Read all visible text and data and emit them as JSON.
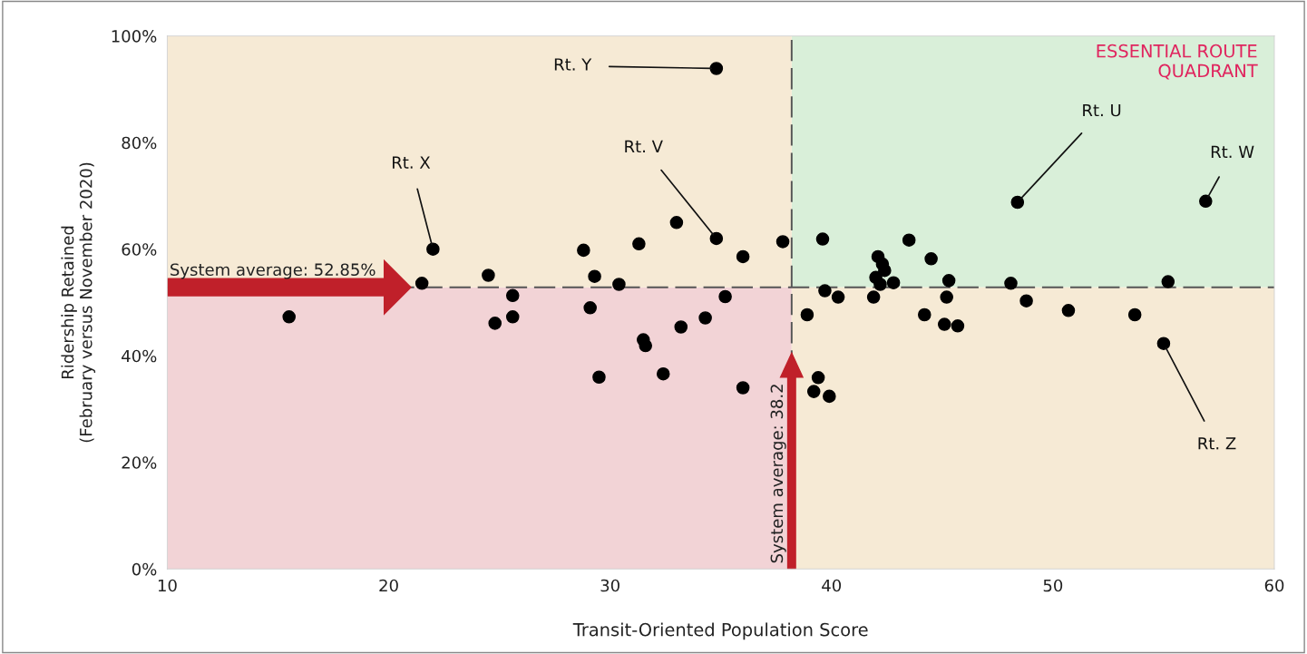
{
  "chart_data": {
    "type": "scatter",
    "xlabel": "Transit-Oriented Population Score",
    "ylabel": "Ridership Retained\n(February versus November 2020)",
    "xlim": [
      10,
      60
    ],
    "xticks": [
      10,
      20,
      30,
      40,
      50,
      60
    ],
    "ylim": [
      0,
      100
    ],
    "yticks": [
      {
        "value": 0,
        "label": "0%"
      },
      {
        "value": 20,
        "label": "20%"
      },
      {
        "value": 40,
        "label": "40%"
      },
      {
        "value": 60,
        "label": "60%"
      },
      {
        "value": 80,
        "label": "80%"
      },
      {
        "value": 100,
        "label": "100%"
      }
    ],
    "grid": false,
    "marker": "circle",
    "legend": false,
    "series": [
      {
        "color": "#000000",
        "x": [
          15.5,
          22.0,
          21.5,
          24.5,
          24.8,
          25.6,
          25.6,
          28.8,
          29.3,
          29.1,
          29.5,
          30.4,
          31.3,
          31.5,
          31.6,
          32.4,
          33.0,
          33.2,
          34.3,
          34.8,
          34.8,
          35.2,
          36.0,
          36.0,
          37.8,
          38.9,
          39.4,
          39.2,
          39.6,
          39.7,
          39.9,
          40.3,
          41.9,
          42.1,
          42.3,
          42.4,
          42.0,
          42.2,
          42.8,
          43.5,
          44.5,
          45.3,
          45.2,
          44.2,
          45.1,
          45.7,
          48.1,
          48.4,
          48.8,
          50.7,
          53.7,
          55.0,
          55.2,
          56.9
        ],
        "values": [
          47.3,
          60.0,
          53.6,
          55.1,
          46.1,
          51.3,
          47.3,
          59.8,
          54.9,
          49.0,
          36.0,
          53.4,
          61.0,
          43.0,
          41.9,
          36.6,
          65.0,
          45.4,
          47.1,
          93.9,
          62.0,
          51.1,
          34.0,
          58.6,
          61.4,
          47.7,
          35.9,
          33.3,
          61.9,
          52.2,
          32.4,
          51.0,
          51.0,
          58.6,
          57.2,
          56.0,
          54.7,
          53.4,
          53.7,
          61.7,
          58.2,
          54.1,
          51.0,
          47.7,
          45.9,
          45.6,
          53.6,
          68.8,
          50.3,
          48.5,
          47.7,
          42.3,
          53.9,
          69.0
        ]
      }
    ],
    "ref_lines": [
      {
        "axis": "y",
        "value": 52.85,
        "label": "System average: 52.85%",
        "color": "#555555",
        "line_style": "dashed"
      },
      {
        "axis": "x",
        "value": 38.2,
        "label": "System average: 38.2",
        "color": "#555555",
        "line_style": "dashed"
      }
    ],
    "annotations": [
      {
        "text": "Rt. X",
        "x": 22.0,
        "y": 60.0
      },
      {
        "text": "Rt. Y",
        "x": 34.8,
        "y": 93.9
      },
      {
        "text": "Rt. V",
        "x": 34.8,
        "y": 62.0
      },
      {
        "text": "Rt. U",
        "x": 48.4,
        "y": 68.8
      },
      {
        "text": "Rt. W",
        "x": 56.9,
        "y": 69.0
      },
      {
        "text": "Rt. Z",
        "x": 55.0,
        "y": 42.3
      },
      "ESSENTIAL ROUTE\nQUADRANT"
    ]
  }
}
